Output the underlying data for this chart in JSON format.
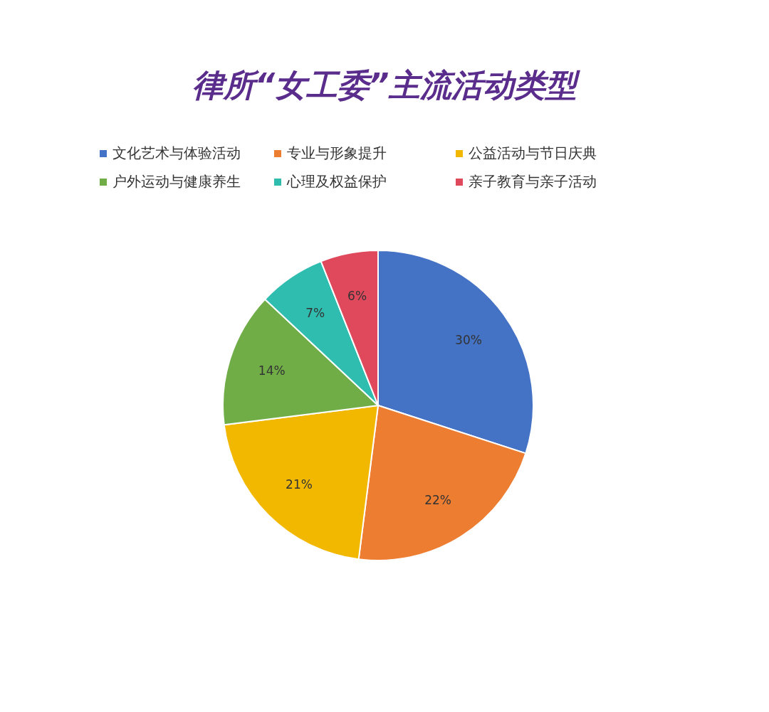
{
  "chart_data": {
    "type": "pie",
    "title": "律所“女工委”主流活动类型",
    "categories": [
      "文化艺术与体验活动",
      "专业与形象提升",
      "公益活动与节日庆典",
      "户外运动与健康养生",
      "心理及权益保护",
      "亲子教育与亲子活动"
    ],
    "values": [
      30,
      22,
      21,
      14,
      7,
      6
    ],
    "value_labels": [
      "30%",
      "22%",
      "21%",
      "14%",
      "7%",
      "6%"
    ],
    "colors": [
      "#4472c4",
      "#ed7d31",
      "#f2b800",
      "#70ad47",
      "#2fbdb0",
      "#e0485c"
    ],
    "legend": "top"
  }
}
